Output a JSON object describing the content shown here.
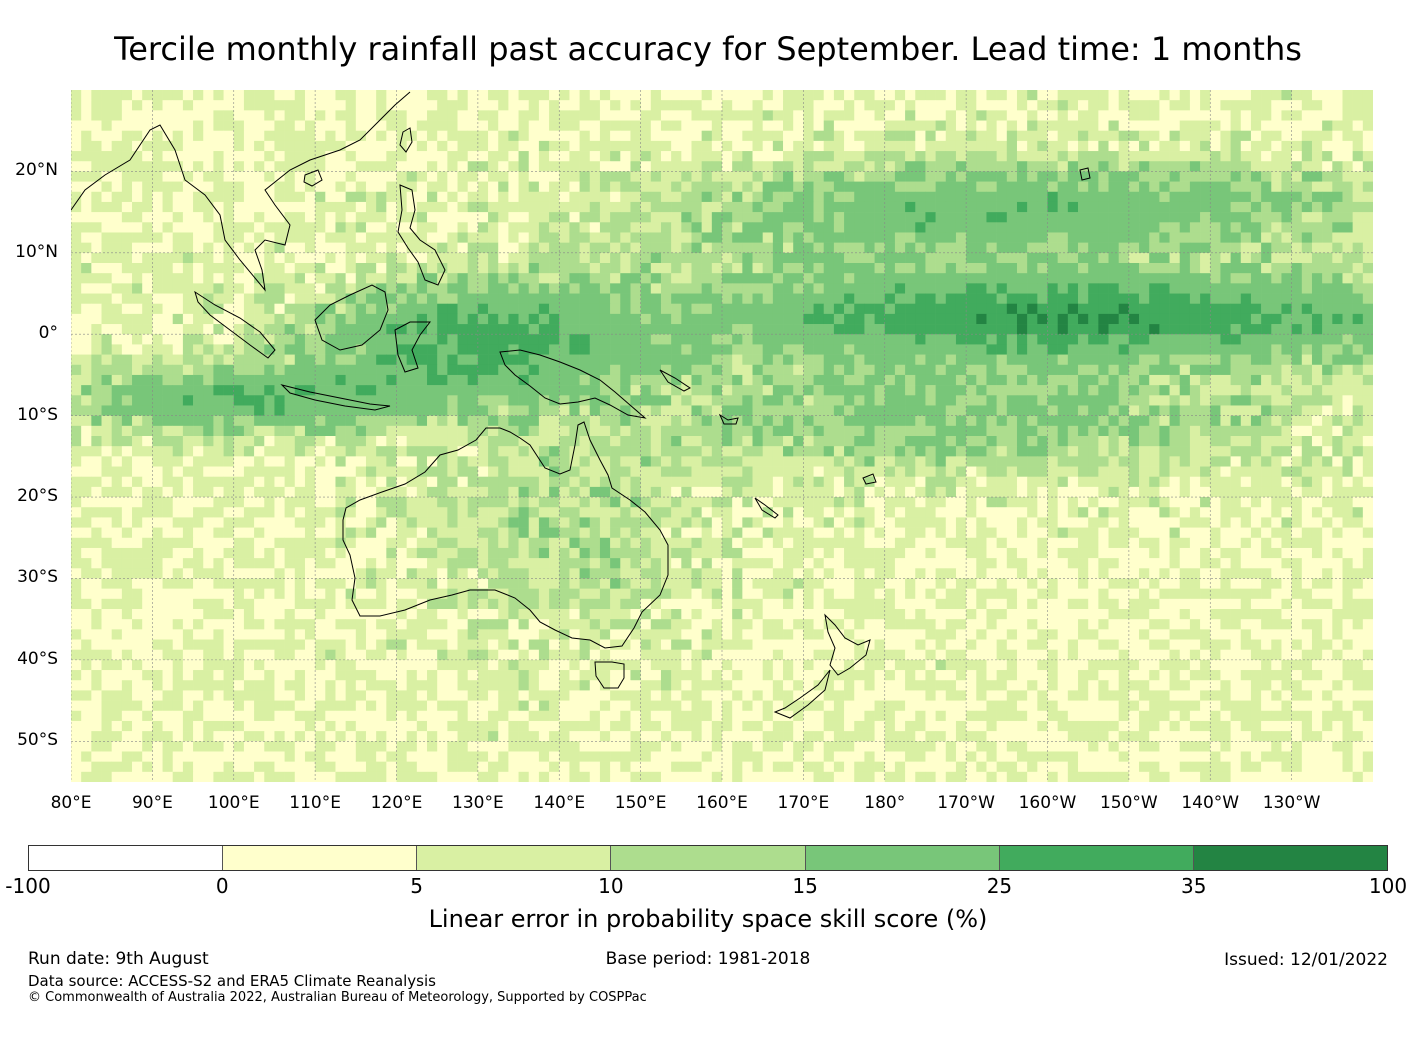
{
  "title": "Tercile monthly rainfall past accuracy for September. Lead time: 1 months",
  "map": {
    "lat_labels": [
      "20°N",
      "10°N",
      "0°",
      "10°S",
      "20°S",
      "30°S",
      "40°S",
      "50°S"
    ],
    "lon_labels": [
      "80°E",
      "90°E",
      "100°E",
      "110°E",
      "120°E",
      "130°E",
      "140°E",
      "150°E",
      "160°E",
      "170°E",
      "180°",
      "170°W",
      "160°W",
      "150°W",
      "140°W",
      "130°W"
    ],
    "lat_range": [
      -55,
      30
    ],
    "lon_range": [
      80,
      240
    ]
  },
  "colorbar": {
    "ticks": [
      "-100",
      "0",
      "5",
      "10",
      "15",
      "25",
      "35",
      "100"
    ],
    "colors": [
      "#ffffff",
      "#ffffcc",
      "#d9f0a3",
      "#addd8e",
      "#78c679",
      "#41ab5d",
      "#238443"
    ],
    "label": "Linear error in probability space skill score (%)"
  },
  "footer": {
    "run_date": "Run date: 9th August",
    "base_period": "Base period: 1981-2018",
    "issued": "Issued: 12/01/2022",
    "data_source": "Data source: ACCESS-S2 and ERA5 Climate Reanalysis",
    "copyright": "© Commonwealth of Australia 2022, Australian Bureau of Meteorology, Supported by COSPPac"
  }
}
